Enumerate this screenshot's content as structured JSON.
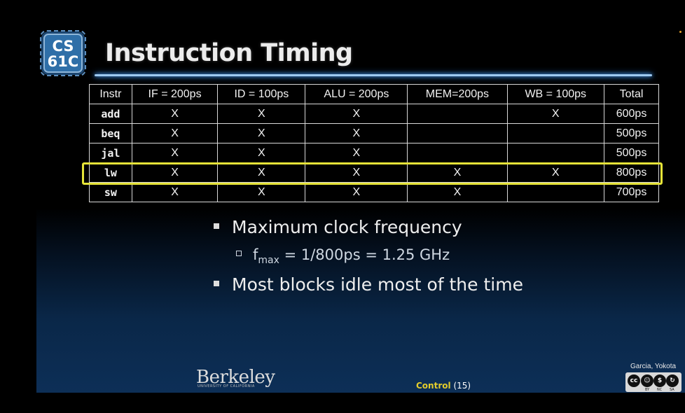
{
  "logo": {
    "line1": "CS",
    "line2": "61C"
  },
  "title": "Instruction Timing",
  "table": {
    "headers": [
      "Instr",
      "IF = 200ps",
      "ID = 100ps",
      "ALU = 200ps",
      "MEM=200ps",
      "WB = 100ps",
      "Total"
    ],
    "rows": [
      [
        "add",
        "X",
        "X",
        "X",
        "",
        "X",
        "600ps"
      ],
      [
        "beq",
        "X",
        "X",
        "X",
        "",
        "",
        "500ps"
      ],
      [
        "jal",
        "X",
        "X",
        "X",
        "",
        "",
        "500ps"
      ],
      [
        "lw",
        "X",
        "X",
        "X",
        "X",
        "X",
        "800ps"
      ],
      [
        "sw",
        "X",
        "X",
        "X",
        "X",
        "",
        "700ps"
      ]
    ],
    "highlighted_row": "lw"
  },
  "bullets": {
    "b1": "Maximum clock frequency",
    "b2_prefix": "f",
    "b2_sub": "max",
    "b2_rest": " = 1/800ps = 1.25 GHz",
    "b3": "Most blocks idle most of the time"
  },
  "footer": {
    "university": "Berkeley",
    "university_sub": "UNIVERSITY OF CALIFORNIA",
    "section": "Control",
    "page": "(15)",
    "author": "Garcia, Yokota",
    "license_labels": [
      "BY",
      "NC",
      "SA"
    ]
  },
  "colors": {
    "highlight": "#e5e338",
    "title_rule": "#9ec9f0",
    "footer_accent": "#e3cc2c"
  }
}
